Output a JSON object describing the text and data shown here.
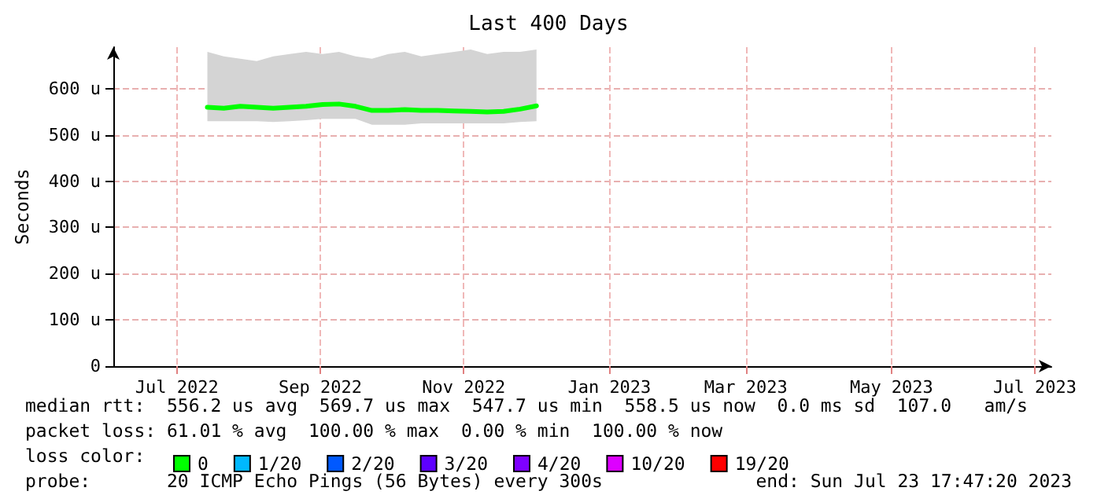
{
  "chart_data": {
    "type": "line",
    "title": "Last 400 Days",
    "ylabel": "Seconds",
    "legend_title": "loss color:",
    "x": [
      "2022-07-29",
      "2022-08-05",
      "2022-08-12",
      "2022-08-19",
      "2022-08-26",
      "2022-09-02",
      "2022-09-09",
      "2022-09-16",
      "2022-09-23",
      "2022-09-30",
      "2022-10-07",
      "2022-10-14",
      "2022-10-21",
      "2022-10-28",
      "2022-11-04",
      "2022-11-11",
      "2022-11-18",
      "2022-11-25",
      "2022-12-02",
      "2022-12-09",
      "2022-12-16"
    ],
    "series": [
      {
        "name": "0",
        "color": "#00ff00",
        "values": [
          560,
          558,
          562,
          560,
          558,
          560,
          562,
          566,
          567,
          562,
          553,
          553,
          555,
          553,
          553,
          552,
          551,
          550,
          551,
          556,
          563
        ],
        "lower": [
          530,
          530,
          530,
          530,
          528,
          530,
          532,
          535,
          535,
          535,
          522,
          522,
          522,
          525,
          525,
          525,
          525,
          525,
          525,
          528,
          530
        ],
        "upper": [
          680,
          670,
          665,
          660,
          670,
          675,
          680,
          675,
          680,
          670,
          665,
          675,
          680,
          670,
          675,
          680,
          685,
          675,
          680,
          680,
          685
        ]
      },
      {
        "name": "1/20",
        "color": "#00b8ff",
        "values": [
          null,
          null,
          null,
          null,
          null,
          null,
          null,
          null,
          null,
          null,
          null,
          null,
          null,
          null,
          null,
          null,
          null,
          null,
          null,
          null,
          null
        ]
      },
      {
        "name": "2/20",
        "color": "#0059ff",
        "values": [
          null,
          null,
          null,
          null,
          null,
          null,
          null,
          null,
          null,
          null,
          null,
          null,
          null,
          null,
          null,
          null,
          null,
          null,
          null,
          null,
          null
        ]
      },
      {
        "name": "3/20",
        "color": "#5e00ff",
        "values": [
          null,
          null,
          null,
          null,
          null,
          null,
          null,
          null,
          null,
          null,
          null,
          null,
          null,
          null,
          null,
          null,
          null,
          null,
          null,
          null,
          null
        ]
      },
      {
        "name": "4/20",
        "color": "#7e00ff",
        "values": [
          null,
          null,
          null,
          null,
          null,
          null,
          null,
          null,
          null,
          null,
          null,
          null,
          null,
          null,
          null,
          null,
          null,
          null,
          null,
          null,
          null
        ]
      },
      {
        "name": "10/20",
        "color": "#dd00ff",
        "values": [
          null,
          null,
          null,
          null,
          null,
          null,
          null,
          null,
          null,
          null,
          null,
          null,
          null,
          null,
          null,
          null,
          null,
          null,
          null,
          null,
          null
        ]
      },
      {
        "name": "19/20",
        "color": "#ff0000",
        "values": [
          null,
          null,
          null,
          null,
          null,
          null,
          null,
          null,
          null,
          null,
          null,
          null,
          null,
          null,
          null,
          null,
          null,
          null,
          null,
          null,
          null
        ]
      }
    ],
    "xlim": [
      "2022-06-19",
      "2023-07-23"
    ],
    "xticks": [
      {
        "value": "2022-07-16",
        "label": "Jul 2022"
      },
      {
        "value": "2022-09-15",
        "label": "Sep 2022"
      },
      {
        "value": "2022-11-15",
        "label": "Nov 2022"
      },
      {
        "value": "2023-01-16",
        "label": "Jan 2023"
      },
      {
        "value": "2023-03-15",
        "label": "Mar 2023"
      },
      {
        "value": "2023-05-16",
        "label": "May 2023"
      },
      {
        "value": "2023-07-16",
        "label": "Jul 2023"
      }
    ],
    "ylim": [
      0,
      690
    ],
    "yticks": [
      0,
      {
        "value": 100,
        "label": "100 u"
      },
      {
        "value": 200,
        "label": "200 u"
      },
      {
        "value": 300,
        "label": "300 u"
      },
      {
        "value": 400,
        "label": "400 u"
      },
      {
        "value": 500,
        "label": "500 u"
      },
      {
        "value": 600,
        "label": "600 u"
      }
    ],
    "grid": true,
    "legend": "bottom",
    "marker": "none",
    "line_style": "solid",
    "annotations": [
      "median rtt:  556.2 us avg  569.7 us max  547.7 us min  558.5 us now  0.0 ms sd  107.0   am/s",
      "packet loss: 61.01 % avg  100.00 % max  0.00 % min  100.00 % now",
      "probe:       20 ICMP Echo Pings (56 Bytes) every 300s",
      "end: Sun Jul 23 17:47:20 2023"
    ]
  }
}
